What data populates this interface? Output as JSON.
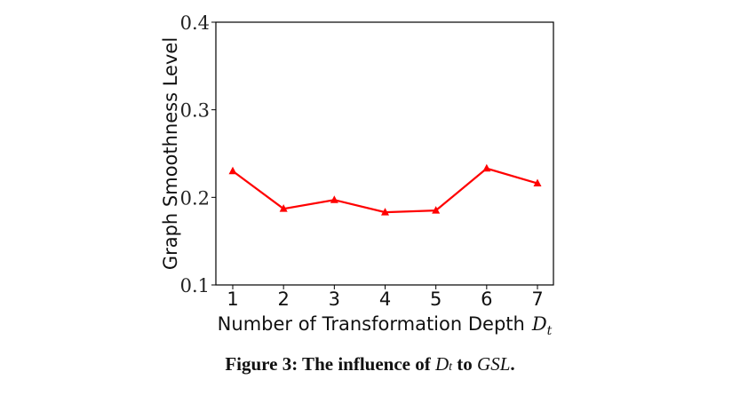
{
  "chart_data": {
    "type": "line",
    "title": "",
    "xlabel": "Number of Transformation Depth",
    "xlabel_math": "D",
    "xlabel_sub": "t",
    "ylabel": "Graph Smoothness Level",
    "x": [
      1,
      2,
      3,
      4,
      5,
      6,
      7
    ],
    "series": [
      {
        "values": [
          0.23,
          0.187,
          0.197,
          0.183,
          0.185,
          0.233,
          0.216
        ],
        "color": "#ff0000",
        "marker": "triangle"
      }
    ],
    "ylim": [
      0.1,
      0.4
    ],
    "yticks": [
      "0.1",
      "0.2",
      "0.3",
      "0.4"
    ],
    "xticks": [
      "1",
      "2",
      "3",
      "4",
      "5",
      "6",
      "7"
    ],
    "grid": false
  },
  "caption": {
    "prefix": "Figure 3: The influence of",
    "var1": "D",
    "var1_sub": "t",
    "middle": "to",
    "var2": "GSL",
    "suffix": "."
  }
}
